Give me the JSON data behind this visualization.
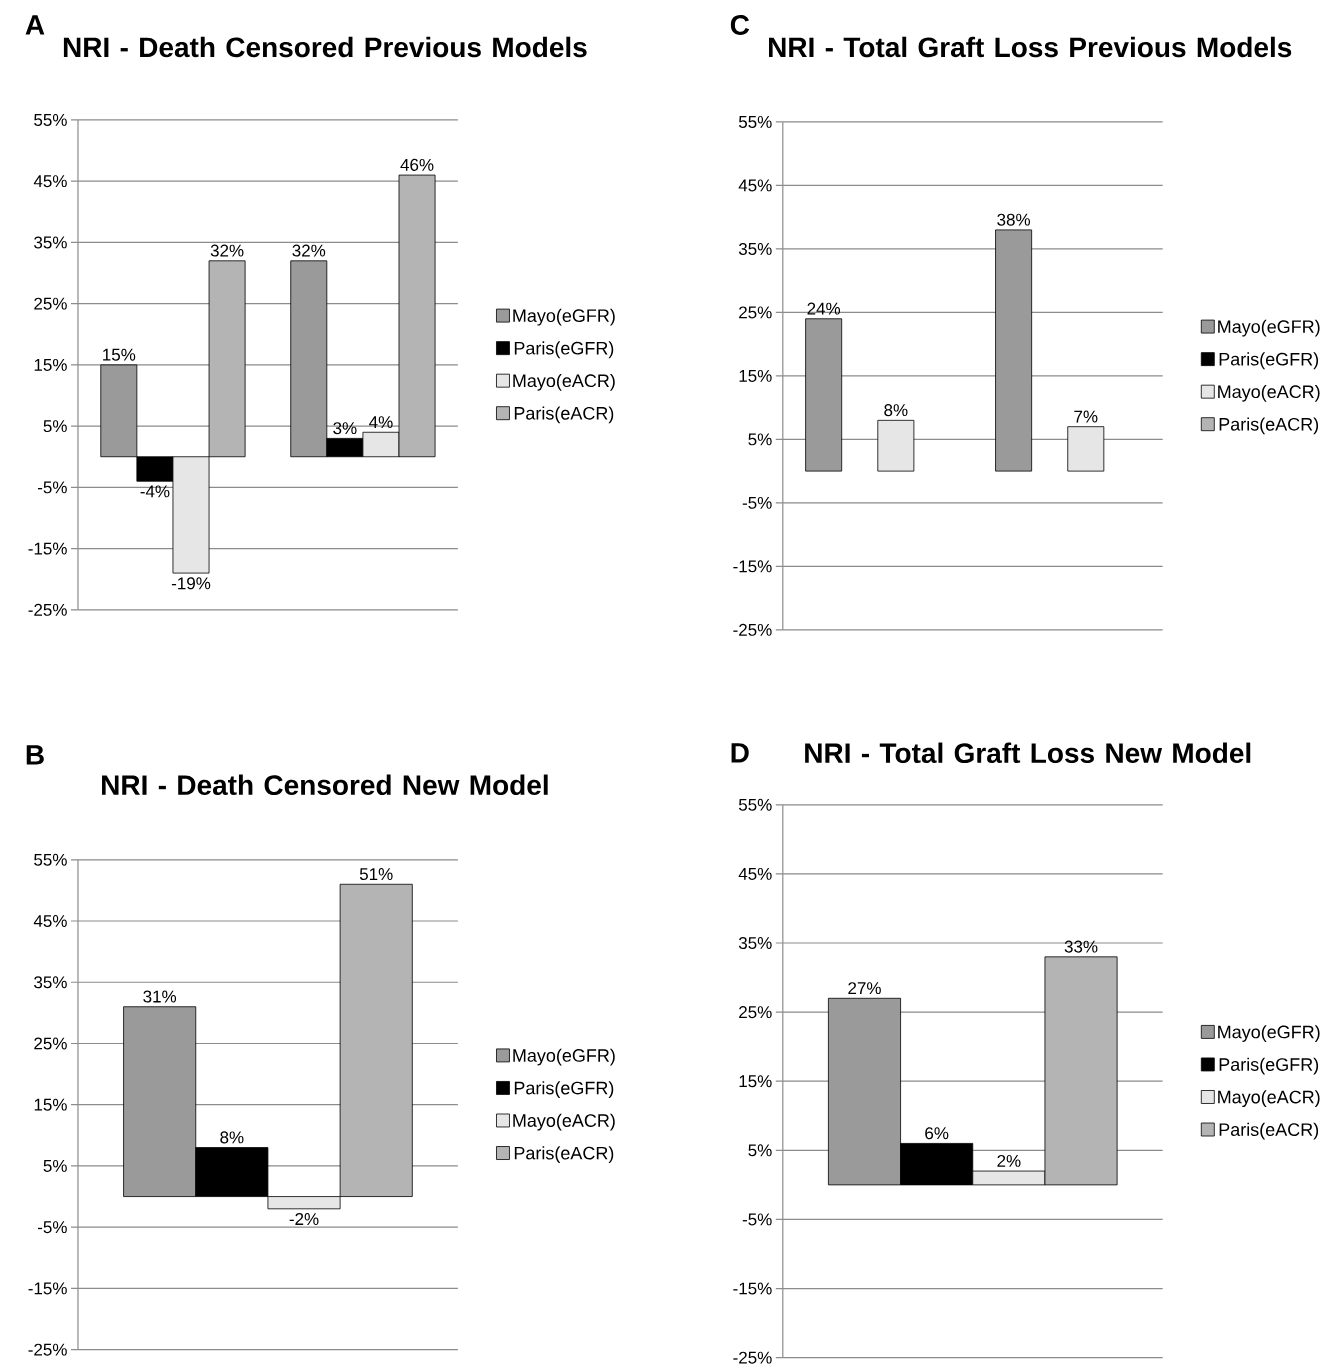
{
  "chart_data": [
    {
      "type": "bar",
      "title": "NRI - Death Censored Previous Models",
      "annotations": [
        "A"
      ],
      "categories": [
        null,
        null
      ],
      "series": [
        {
          "name": "Mayo(eGFR)",
          "color": "#9a9a9a",
          "values": [
            15,
            32
          ],
          "value_labels": [
            "15%",
            "32%"
          ]
        },
        {
          "name": "Paris(eGFR)",
          "color": "#000000",
          "values": [
            -4,
            3
          ],
          "value_labels": [
            "-4%",
            "3%"
          ]
        },
        {
          "name": "Mayo(eACR)",
          "color": "#e6e6e6",
          "values": [
            -19,
            4
          ],
          "value_labels": [
            "-19%",
            "4%"
          ]
        },
        {
          "name": "Paris(eACR)",
          "color": "#b4b4b4",
          "values": [
            32,
            46
          ],
          "value_labels": [
            "32%",
            "46%"
          ]
        }
      ],
      "ylim": [
        -25,
        55
      ],
      "yticks": [
        {
          "value": -25,
          "label": "-25%"
        },
        {
          "value": -15,
          "label": "-15%"
        },
        {
          "value": -5,
          "label": "-5%"
        },
        {
          "value": 5,
          "label": "5%"
        },
        {
          "value": 15,
          "label": "15%"
        },
        {
          "value": 25,
          "label": "25%"
        },
        {
          "value": 35,
          "label": "35%"
        },
        {
          "value": 45,
          "label": "45%"
        },
        {
          "value": 55,
          "label": "55%"
        }
      ],
      "grid": "y",
      "legend": "right"
    },
    {
      "type": "bar",
      "title": "NRI - Total Graft Loss Previous Models",
      "annotations": [
        "C"
      ],
      "categories": [
        null,
        null
      ],
      "series": [
        {
          "name": "Mayo(eGFR)",
          "color": "#9a9a9a",
          "values": [
            24,
            38
          ],
          "value_labels": [
            "24%",
            "38%"
          ]
        },
        {
          "name": "Paris(eGFR)",
          "color": "#000000",
          "values": [
            null,
            null
          ],
          "value_labels": [
            null,
            null
          ]
        },
        {
          "name": "Mayo(eACR)",
          "color": "#e6e6e6",
          "values": [
            8,
            7
          ],
          "value_labels": [
            "8%",
            "7%"
          ]
        },
        {
          "name": "Paris(eACR)",
          "color": "#b4b4b4",
          "values": [
            null,
            null
          ],
          "value_labels": [
            null,
            null
          ]
        }
      ],
      "ylim": [
        -25,
        55
      ],
      "yticks": [
        {
          "value": -25,
          "label": "-25%"
        },
        {
          "value": -15,
          "label": "-15%"
        },
        {
          "value": -5,
          "label": "-5%"
        },
        {
          "value": 5,
          "label": "5%"
        },
        {
          "value": 15,
          "label": "15%"
        },
        {
          "value": 25,
          "label": "25%"
        },
        {
          "value": 35,
          "label": "35%"
        },
        {
          "value": 45,
          "label": "45%"
        },
        {
          "value": 55,
          "label": "55%"
        }
      ],
      "grid": "y",
      "legend": "right"
    },
    {
      "type": "bar",
      "title": "NRI - Death Censored New Model",
      "annotations": [
        "B"
      ],
      "categories": [
        null
      ],
      "series": [
        {
          "name": "Mayo(eGFR)",
          "color": "#9a9a9a",
          "values": [
            31
          ],
          "value_labels": [
            "31%"
          ]
        },
        {
          "name": "Paris(eGFR)",
          "color": "#000000",
          "values": [
            8
          ],
          "value_labels": [
            "8%"
          ]
        },
        {
          "name": "Mayo(eACR)",
          "color": "#e6e6e6",
          "values": [
            -2
          ],
          "value_labels": [
            "-2%"
          ]
        },
        {
          "name": "Paris(eACR)",
          "color": "#b4b4b4",
          "values": [
            51
          ],
          "value_labels": [
            "51%"
          ]
        }
      ],
      "ylim": [
        -25,
        55
      ],
      "yticks": [
        {
          "value": -25,
          "label": "-25%"
        },
        {
          "value": -15,
          "label": "-15%"
        },
        {
          "value": -5,
          "label": "-5%"
        },
        {
          "value": 5,
          "label": "5%"
        },
        {
          "value": 15,
          "label": "15%"
        },
        {
          "value": 25,
          "label": "25%"
        },
        {
          "value": 35,
          "label": "35%"
        },
        {
          "value": 45,
          "label": "45%"
        },
        {
          "value": 55,
          "label": "55%"
        }
      ],
      "grid": "y",
      "legend": "right"
    },
    {
      "type": "bar",
      "title": "NRI - Total Graft Loss New Model",
      "annotations": [
        "D"
      ],
      "categories": [
        null
      ],
      "series": [
        {
          "name": "Mayo(eGFR)",
          "color": "#9a9a9a",
          "values": [
            27
          ],
          "value_labels": [
            "27%"
          ]
        },
        {
          "name": "Paris(eGFR)",
          "color": "#000000",
          "values": [
            6
          ],
          "value_labels": [
            "6%"
          ]
        },
        {
          "name": "Mayo(eACR)",
          "color": "#e6e6e6",
          "values": [
            2
          ],
          "value_labels": [
            "2%"
          ]
        },
        {
          "name": "Paris(eACR)",
          "color": "#b4b4b4",
          "values": [
            33
          ],
          "value_labels": [
            "33%"
          ]
        }
      ],
      "ylim": [
        -25,
        55
      ],
      "yticks": [
        {
          "value": -25,
          "label": "-25%"
        },
        {
          "value": -15,
          "label": "-15%"
        },
        {
          "value": -5,
          "label": "-5%"
        },
        {
          "value": 5,
          "label": "5%"
        },
        {
          "value": 15,
          "label": "15%"
        },
        {
          "value": 25,
          "label": "25%"
        },
        {
          "value": 35,
          "label": "35%"
        },
        {
          "value": 45,
          "label": "45%"
        },
        {
          "value": 55,
          "label": "55%"
        }
      ],
      "grid": "y",
      "legend": "right"
    }
  ]
}
